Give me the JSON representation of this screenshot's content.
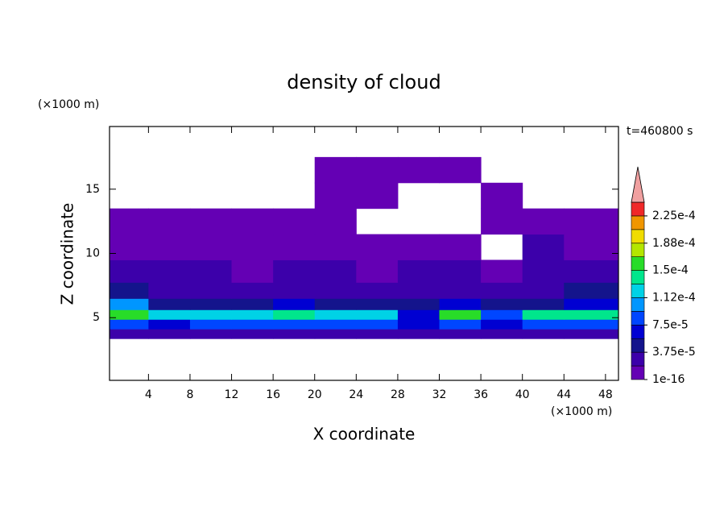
{
  "chart_data": {
    "type": "contour",
    "title": "density of cloud",
    "xlabel": "X coordinate",
    "ylabel": "Z coordinate",
    "x_unit": "(×1000 m)",
    "y_unit": "(×1000 m)",
    "annotation": "t=460800 s",
    "xlim": [
      0.25,
      49.25
    ],
    "ylim": [
      0.125,
      19.875
    ],
    "xticks": [
      4,
      8,
      12,
      16,
      20,
      24,
      28,
      32,
      36,
      40,
      44,
      48
    ],
    "yticks": [
      5,
      10,
      15
    ],
    "x": [
      2,
      6,
      10,
      14,
      18,
      22,
      26,
      30,
      34,
      38,
      42,
      46
    ],
    "z": [
      3.75,
      4.5,
      5.25,
      6,
      7,
      8.5,
      10.5,
      12.5,
      14.5,
      16.5
    ],
    "values": [
      [
        2e-05,
        2e-05,
        2e-05,
        2e-05,
        2e-05,
        2e-05,
        2e-05,
        2e-05,
        2e-05,
        2e-05,
        2e-05,
        2e-05
      ],
      [
        8e-05,
        7e-05,
        8e-05,
        8e-05,
        8e-05,
        8e-05,
        8e-05,
        6e-05,
        8e-05,
        7e-05,
        8e-05,
        8e-05
      ],
      [
        0.000155,
        0.00012,
        0.00013,
        0.000115,
        0.000145,
        0.00013,
        0.000125,
        6e-05,
        0.000155,
        9e-05,
        0.00014,
        0.000135
      ],
      [
        0.00011,
        5e-05,
        4e-05,
        4e-05,
        6e-05,
        4e-05,
        5e-05,
        4e-05,
        6e-05,
        4e-05,
        5e-05,
        6e-05
      ],
      [
        4e-05,
        3e-05,
        3e-05,
        3e-05,
        3e-05,
        3e-05,
        3e-05,
        3e-05,
        3e-05,
        3e-05,
        3.5e-05,
        4e-05
      ],
      [
        2.5e-05,
        2e-05,
        2e-05,
        1.5e-05,
        2e-05,
        2e-05,
        1.5e-05,
        2e-05,
        2e-05,
        1.5e-05,
        2e-05,
        2.5e-05
      ],
      [
        1e-05,
        1e-05,
        1.5e-05,
        1e-05,
        1e-05,
        1e-05,
        1e-05,
        1e-05,
        1e-05,
        null,
        2e-05,
        1e-05
      ],
      [
        5e-06,
        5e-06,
        5e-06,
        5e-06,
        5e-06,
        5e-06,
        null,
        null,
        null,
        5e-06,
        5e-06,
        5e-06
      ],
      [
        null,
        null,
        null,
        null,
        null,
        5e-06,
        5e-06,
        null,
        null,
        5e-06,
        null,
        null
      ],
      [
        null,
        null,
        null,
        null,
        null,
        5e-06,
        5e-06,
        5e-06,
        5e-06,
        null,
        null,
        null
      ]
    ],
    "colorbar": {
      "levels": [
        1e-16,
        1.875e-05,
        3.75e-05,
        5.625e-05,
        7.5e-05,
        9.375e-05,
        0.0001125,
        0.00013125,
        0.00015,
        0.00016875,
        0.0001875,
        0.00020625,
        0.000225,
        0.00024375
      ],
      "colors": [
        "#6400b4",
        "#3c00aa",
        "#14148c",
        "#0000d2",
        "#0046ff",
        "#0096ff",
        "#00d2e6",
        "#00e68c",
        "#28dc28",
        "#b4e600",
        "#f0dc00",
        "#f09600",
        "#f02828"
      ],
      "extend_color": "#f0a0a0",
      "ticks": [
        {
          "value": 1e-16,
          "label": "1e-16"
        },
        {
          "value": 3.75e-05,
          "label": "3.75e-5"
        },
        {
          "value": 7.5e-05,
          "label": "7.5e-5"
        },
        {
          "value": 0.0001125,
          "label": "1.12e-4"
        },
        {
          "value": 0.00015,
          "label": "1.5e-4"
        },
        {
          "value": 0.0001875,
          "label": "1.88e-4"
        },
        {
          "value": 0.000225,
          "label": "2.25e-4"
        }
      ]
    }
  }
}
